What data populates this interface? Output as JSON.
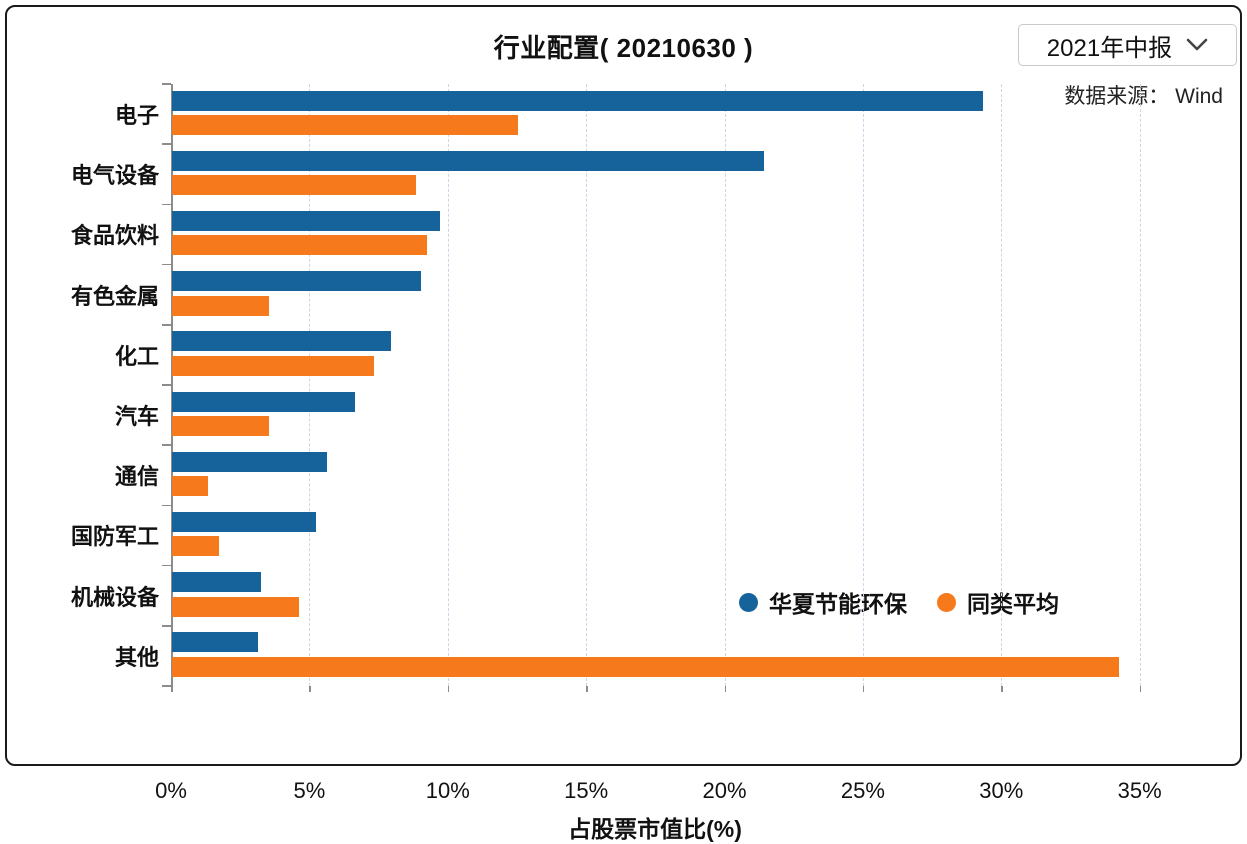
{
  "header": {
    "title": "行业配置( 20210630 )",
    "period_selector": {
      "value": "2021年中报"
    },
    "source": "数据来源： Wind"
  },
  "chart_data": {
    "type": "bar",
    "orientation": "horizontal",
    "title": "行业配置( 20210630 )",
    "xlabel": "占股票市值比(%)",
    "ylabel": "",
    "categories": [
      "电子",
      "电气设备",
      "食品饮料",
      "有色金属",
      "化工",
      "汽车",
      "通信",
      "国防军工",
      "机械设备",
      "其他"
    ],
    "series": [
      {
        "name": "华夏节能环保",
        "color": "#16639B",
        "values": [
          29.3,
          21.4,
          9.7,
          9.0,
          7.9,
          6.6,
          5.6,
          5.2,
          3.2,
          3.1
        ]
      },
      {
        "name": "同类平均",
        "color": "#F67A1C",
        "values": [
          12.5,
          8.8,
          9.2,
          3.5,
          7.3,
          3.5,
          1.3,
          1.7,
          4.6,
          34.2
        ]
      }
    ],
    "x_ticks": [
      "0%",
      "5%",
      "10%",
      "15%",
      "20%",
      "25%",
      "30%",
      "35%"
    ],
    "xlim": [
      0,
      38.3
    ],
    "grid": "dashed-vertical-at-ticks",
    "legend_position": "inside-bottom-right",
    "colors": {
      "axis": "#8c8c8c",
      "gridline": "#ccd5e8",
      "text": "#111111"
    }
  }
}
